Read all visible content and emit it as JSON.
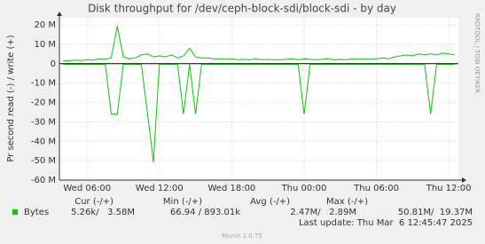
{
  "chart_data": {
    "type": "line",
    "title": "Disk throughput for /dev/ceph-block-sdi/block-sdi - by day",
    "y_label": "Pr second read (-) / write (+)",
    "side_text": "RRDTOOL / TOBI OETIKER",
    "x": [
      4.0,
      4.5,
      5.0,
      5.5,
      6.0,
      6.5,
      7.0,
      7.5,
      8.0,
      8.5,
      9.0,
      9.5,
      10.0,
      10.5,
      11.0,
      11.5,
      12.0,
      12.5,
      13.0,
      13.5,
      14.0,
      14.5,
      15.0,
      15.5,
      16.0,
      16.5,
      17.0,
      17.5,
      18.0,
      18.5,
      19.0,
      19.5,
      20.0,
      20.5,
      21.0,
      21.5,
      22.0,
      22.5,
      23.0,
      23.5,
      24.0,
      24.5,
      25.0,
      25.5,
      26.0,
      26.5,
      27.0,
      27.5,
      28.0,
      28.5,
      29.0,
      29.5,
      30.0,
      30.5,
      31.0,
      31.5,
      32.0,
      32.5,
      33.0,
      33.5,
      34.0,
      34.5,
      35.0,
      35.5,
      36.0,
      36.5
    ],
    "series": [
      {
        "color": "#00cc00",
        "values": [
          1500000,
          1500000,
          1800000,
          1600000,
          2000000,
          1800000,
          2500000,
          2200000,
          3000000,
          19370000,
          3500000,
          2500000,
          3000000,
          4500000,
          5000000,
          3500000,
          4000000,
          3500000,
          4500000,
          3000000,
          4000000,
          8000000,
          3500000,
          3000000,
          3000000,
          2500000,
          2500000,
          2200000,
          2500000,
          2000000,
          2200000,
          2000000,
          2500000,
          2000000,
          2200000,
          2000000,
          2000000,
          2200000,
          2500000,
          2000000,
          2500000,
          2200000,
          2000000,
          2200000,
          2500000,
          2000000,
          2200000,
          2000000,
          2500000,
          2200000,
          2500000,
          2200000,
          2500000,
          3000000,
          2500000,
          3500000,
          4000000,
          4500000,
          4000000,
          5000000,
          4500000,
          5000000,
          4500000,
          5500000,
          5000000,
          4500000
        ]
      },
      {
        "color": "#00cc00",
        "values": [
          -300000,
          -300000,
          -300000,
          -300000,
          -300000,
          -300000,
          -300000,
          -300000,
          -26000000,
          -26000000,
          -300000,
          -300000,
          -300000,
          -300000,
          -25000000,
          -50810000,
          -300000,
          -300000,
          -300000,
          -300000,
          -26000000,
          -300000,
          -26000000,
          -300000,
          -300000,
          -300000,
          -300000,
          -300000,
          -300000,
          -300000,
          -300000,
          -300000,
          -300000,
          -300000,
          -300000,
          -300000,
          -300000,
          -300000,
          -300000,
          -300000,
          -26000000,
          -300000,
          -300000,
          -300000,
          -300000,
          -300000,
          -300000,
          -300000,
          -300000,
          -300000,
          -300000,
          -300000,
          -300000,
          -300000,
          -300000,
          -300000,
          -300000,
          -300000,
          -300000,
          -300000,
          -300000,
          -26000000,
          -300000,
          -300000,
          -300000,
          -300000
        ]
      }
    ],
    "xlim": [
      3.7,
      36.8
    ],
    "xticks": [
      {
        "value": 6,
        "label": "Wed 06:00"
      },
      {
        "value": 12,
        "label": "Wed 12:00"
      },
      {
        "value": 18,
        "label": "Wed 18:00"
      },
      {
        "value": 24,
        "label": "Thu 00:00"
      },
      {
        "value": 30,
        "label": "Thu 06:00"
      },
      {
        "value": 36,
        "label": "Thu 12:00"
      }
    ],
    "ylim": [
      -60000000,
      20000000
    ],
    "yticks": [
      {
        "value": -60000000,
        "label": "-60 M"
      },
      {
        "value": -50000000,
        "label": "-50 M"
      },
      {
        "value": -40000000,
        "label": "-40 M"
      },
      {
        "value": -30000000,
        "label": "-30 M"
      },
      {
        "value": -20000000,
        "label": "-20 M"
      },
      {
        "value": -10000000,
        "label": "-10 M"
      },
      0,
      {
        "value": 10000000,
        "label": "10 M"
      },
      {
        "value": 20000000,
        "label": "20 M"
      }
    ],
    "grid": true,
    "legend": {
      "label": "Bytes",
      "color": "#00cc00"
    },
    "stats": {
      "headers": [
        "Cur (-/+)",
        "Min (-/+)",
        "Avg (-/+)",
        "Max (-/+)"
      ],
      "cells": [
        "5.26k/   3.58M",
        "66.94 / 893.01k",
        "2.47M/   2.89M",
        "50.81M/  19.37M"
      ]
    },
    "last_update": "Last update: Thu Mar  6 12:45:47 2025",
    "footer": "Munin 2.0.75"
  }
}
